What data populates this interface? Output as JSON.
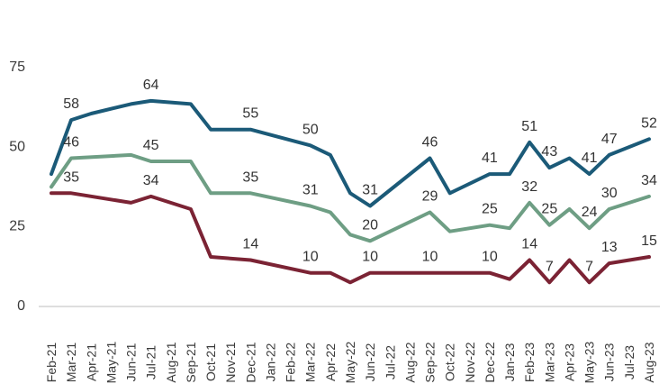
{
  "chart_data": {
    "type": "line",
    "x": [
      "Feb-21",
      "Mar-21",
      "Apr-21",
      "May-21",
      "Jun-21",
      "Jul-21",
      "Aug-21",
      "Sep-21",
      "Oct-21",
      "Nov-21",
      "Dec-21",
      "Jan-22",
      "Feb-22",
      "Mar-22",
      "Apr-22",
      "May-22",
      "Jun-22",
      "Jul-22",
      "Aug-22",
      "Sep-22",
      "Oct-22",
      "Nov-22",
      "Dec-22",
      "Jan-23",
      "Feb-23",
      "Mar-23",
      "Apr-23",
      "May-23",
      "Jun-23",
      "Jul-23",
      "Aug-23"
    ],
    "ylim": [
      0,
      75
    ],
    "yticks": [
      "0",
      "25",
      "50",
      "75"
    ],
    "grid": false,
    "series": [
      {
        "color": "#1b5a78",
        "values": [
          41,
          58,
          60,
          null,
          63,
          64,
          null,
          63,
          55,
          null,
          55,
          null,
          null,
          50,
          47,
          35,
          31,
          null,
          null,
          46,
          35,
          null,
          41,
          41,
          51,
          43,
          46,
          41,
          47,
          null,
          52
        ],
        "labels": [
          null,
          "58",
          null,
          null,
          null,
          "64",
          null,
          null,
          null,
          null,
          "55",
          null,
          null,
          "50",
          null,
          null,
          "31",
          null,
          null,
          "46",
          null,
          null,
          "41",
          null,
          "51",
          "43",
          null,
          "41",
          "47",
          null,
          "52"
        ]
      },
      {
        "color": "#6e9e84",
        "values": [
          37,
          46,
          null,
          null,
          47,
          45,
          null,
          45,
          35,
          null,
          35,
          null,
          null,
          31,
          29,
          22,
          20,
          null,
          null,
          29,
          23,
          null,
          25,
          24,
          32,
          25,
          30,
          24,
          30,
          null,
          34
        ],
        "labels": [
          null,
          "46",
          null,
          null,
          null,
          "45",
          null,
          null,
          null,
          null,
          "35",
          null,
          null,
          "31",
          null,
          null,
          "20",
          null,
          null,
          "29",
          null,
          null,
          "25",
          null,
          "32",
          "25",
          null,
          "24",
          "30",
          null,
          "34"
        ]
      },
      {
        "color": "#7b2334",
        "values": [
          35,
          35,
          null,
          null,
          32,
          34,
          null,
          30,
          15,
          null,
          14,
          null,
          null,
          10,
          10,
          7,
          10,
          null,
          null,
          10,
          10,
          null,
          10,
          8,
          14,
          7,
          14,
          7,
          13,
          null,
          15
        ],
        "labels": [
          null,
          "35",
          null,
          null,
          null,
          "34",
          null,
          null,
          null,
          null,
          "14",
          null,
          null,
          "10",
          null,
          null,
          "10",
          null,
          null,
          "10",
          null,
          null,
          "10",
          null,
          "14",
          "7",
          null,
          "7",
          "13",
          null,
          "15"
        ]
      }
    ]
  }
}
